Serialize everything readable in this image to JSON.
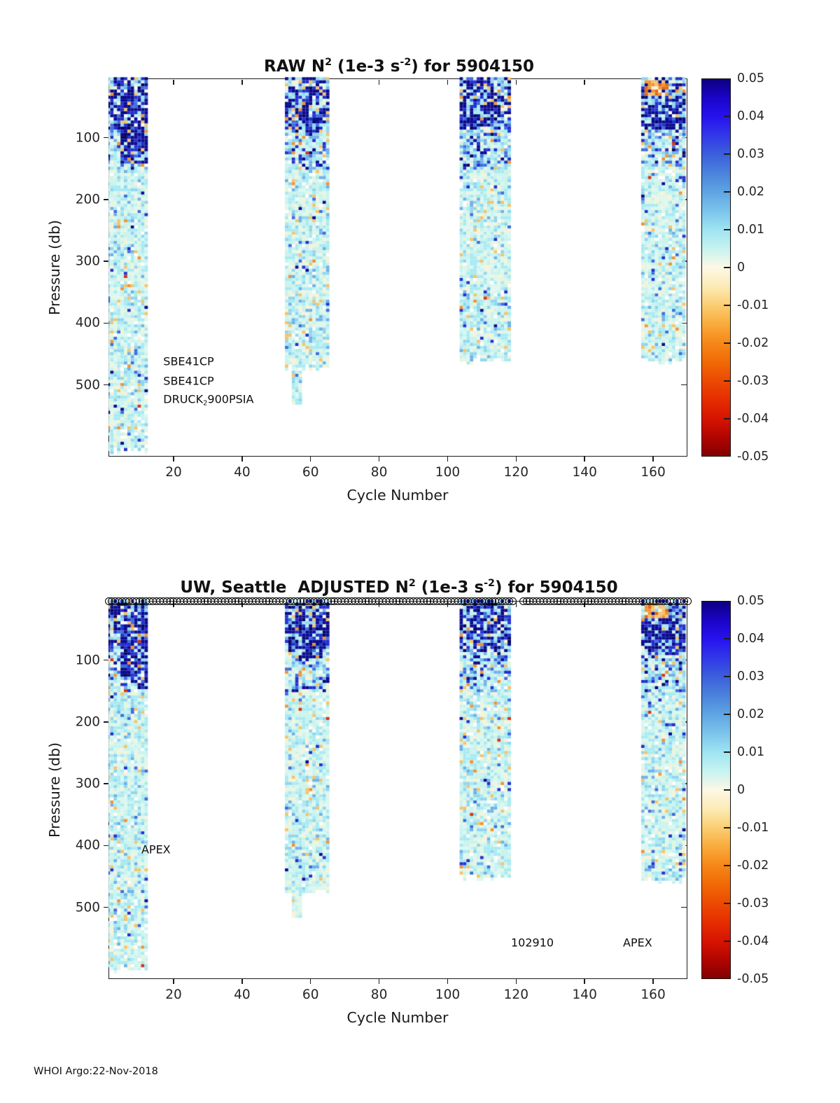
{
  "footer": "WHOI Argo:22-Nov-2018",
  "chart_data": {
    "type": "heatmap",
    "float_id": "5904150",
    "value_label": "N^2 (1e-3 s^-2)",
    "value_range": [
      -0.05,
      0.05
    ],
    "colorbar": {
      "tick_labels": [
        "0.05",
        "0.04",
        "0.03",
        "0.02",
        "0.01",
        "0",
        "-0.01",
        "-0.02",
        "-0.03",
        "-0.04",
        "-0.05"
      ],
      "tick_values": [
        0.05,
        0.04,
        0.03,
        0.02,
        0.01,
        0,
        -0.01,
        -0.02,
        -0.03,
        -0.04,
        -0.05
      ],
      "stops": [
        {
          "v": 0.05,
          "c": "#0d0080"
        },
        {
          "v": 0.045,
          "c": "#1a04c8"
        },
        {
          "v": 0.04,
          "c": "#2712ef"
        },
        {
          "v": 0.035,
          "c": "#3138e8"
        },
        {
          "v": 0.03,
          "c": "#3c5fdc"
        },
        {
          "v": 0.025,
          "c": "#4b83dc"
        },
        {
          "v": 0.02,
          "c": "#5fa5e2"
        },
        {
          "v": 0.015,
          "c": "#7cc4ec"
        },
        {
          "v": 0.01,
          "c": "#9fe4f2"
        },
        {
          "v": 0.005,
          "c": "#c6f3f0"
        },
        {
          "v": 0.0,
          "c": "#fdf8e5"
        },
        {
          "v": -0.005,
          "c": "#fcebb6"
        },
        {
          "v": -0.01,
          "c": "#fbce72"
        },
        {
          "v": -0.015,
          "c": "#f9ab3c"
        },
        {
          "v": -0.02,
          "c": "#f68818"
        },
        {
          "v": -0.025,
          "c": "#f16a06"
        },
        {
          "v": -0.03,
          "c": "#ec4a02"
        },
        {
          "v": -0.035,
          "c": "#e62e00"
        },
        {
          "v": -0.04,
          "c": "#d81400"
        },
        {
          "v": -0.045,
          "c": "#b10500"
        },
        {
          "v": -0.05,
          "c": "#840000"
        }
      ]
    },
    "palette": {
      "navy": "#0b0b8f",
      "dnavy": "#050563",
      "blue": "#2330cf",
      "mblue": "#3f6ede",
      "lblue": "#6fb1e8",
      "sky": "#90d5ee",
      "cyan": "#a8eaf2",
      "pcyan": "#c9f3ee",
      "pale": "#dcf7f0",
      "mint": "#e3f6df",
      "cream": "#f7f2d9",
      "white": "#ffffff",
      "amber": "#f4c36a",
      "orange": "#f09433",
      "dorange": "#e4670d",
      "red": "#d63415",
      "dred": "#8f0a00"
    },
    "depth_tiers": [
      {
        "pmax": 85,
        "w": {
          "navy": 0.27,
          "dnavy": 0.04,
          "blue": 0.15,
          "mblue": 0.07,
          "lblue": 0.07,
          "sky": 0.07,
          "cyan": 0.09,
          "pcyan": 0.06,
          "pale": 0.04,
          "mint": 0.02,
          "cream": 0.04,
          "white": 0.02,
          "amber": 0.04,
          "orange": 0.02,
          "red": 0.008,
          "dred": 0.002
        }
      },
      {
        "pmax": 150,
        "w": {
          "navy": 0.06,
          "dnavy": 0.01,
          "blue": 0.07,
          "mblue": 0.06,
          "lblue": 0.09,
          "sky": 0.11,
          "cyan": 0.18,
          "pcyan": 0.15,
          "pale": 0.09,
          "mint": 0.05,
          "cream": 0.05,
          "white": 0.02,
          "amber": 0.04,
          "orange": 0.015,
          "red": 0.008
        }
      },
      {
        "pmax": 9999,
        "w": {
          "navy": 0.004,
          "blue": 0.01,
          "mblue": 0.016,
          "lblue": 0.035,
          "sky": 0.08,
          "cyan": 0.21,
          "pcyan": 0.26,
          "pale": 0.16,
          "mint": 0.1,
          "cream": 0.06,
          "white": 0.025,
          "amber": 0.03,
          "orange": 0.008,
          "red": 0.004
        }
      }
    ],
    "weight_sets": {
      "blobA": {
        "navy": 0.38,
        "dnavy": 0.06,
        "blue": 0.2,
        "mblue": 0.08,
        "sky": 0.07,
        "cyan": 0.08,
        "pcyan": 0.05,
        "amber": 0.04,
        "white": 0.02,
        "orange": 0.015,
        "red": 0.005
      },
      "blobB": {
        "navy": 0.32,
        "dnavy": 0.04,
        "blue": 0.19,
        "mblue": 0.09,
        "sky": 0.09,
        "cyan": 0.11,
        "pcyan": 0.08,
        "amber": 0.05,
        "orange": 0.02,
        "white": 0.01
      },
      "blobC": {
        "navy": 0.34,
        "dnavy": 0.04,
        "blue": 0.17,
        "mblue": 0.08,
        "sky": 0.1,
        "cyan": 0.12,
        "pcyan": 0.08,
        "amber": 0.05,
        "orange": 0.015,
        "white": 0.005
      },
      "blobD1": {
        "orange": 0.36,
        "amber": 0.3,
        "dorange": 0.14,
        "cream": 0.08,
        "navy": 0.06,
        "sky": 0.04,
        "pcyan": 0.02
      },
      "blobD2": {
        "navy": 0.38,
        "dnavy": 0.04,
        "blue": 0.19,
        "mblue": 0.08,
        "sky": 0.1,
        "cyan": 0.1,
        "pcyan": 0.07,
        "amber": 0.03,
        "white": 0.01
      }
    },
    "panels": [
      {
        "name": "raw",
        "title_segments": [
          {
            "t": "RAW N"
          },
          {
            "t": "2",
            "sup": true
          },
          {
            "t": " (1e-3 s"
          },
          {
            "t": "-2",
            "sup": true
          },
          {
            "t": ") for 5904150"
          }
        ],
        "xlabel": "Cycle Number",
        "ylabel": "Pressure (db)",
        "xlim": [
          1,
          170
        ],
        "ylim": [
          4,
          616
        ],
        "xticks": [
          20,
          40,
          60,
          80,
          100,
          120,
          140,
          160
        ],
        "yticks": [
          100,
          200,
          300,
          400,
          500
        ],
        "annotations": [
          {
            "segments": [
              {
                "t": "SBE41CP"
              }
            ],
            "cycle": 17,
            "pressure": 462
          },
          {
            "segments": [
              {
                "t": "SBE41CP"
              }
            ],
            "cycle": 17,
            "pressure": 494
          },
          {
            "segments": [
              {
                "t": "DRUCK"
              },
              {
                "t": "2",
                "sub": true
              },
              {
                "t": "900PSIA"
              }
            ],
            "cycle": 17,
            "pressure": 523
          }
        ],
        "markers": null,
        "bands": [
          {
            "cycles": [
              1,
              12
            ],
            "p_top": 2,
            "p_bottom": 610,
            "seed": 11,
            "sparse_bottom": 60,
            "features": [
              {
                "c": [
                  5,
                  12
                ],
                "p": [
                  30,
                  140
                ],
                "w": "blobA"
              }
            ]
          },
          {
            "cycles": [
              53,
              65
            ],
            "p_top": 2,
            "p_bottom": 477,
            "seed": 22,
            "tail": {
              "c": [
                55,
                57
              ],
              "p": 528
            },
            "features": [
              {
                "c": [
                  56,
                  63
                ],
                "p": [
                  20,
                  95
                ],
                "w": "blobB"
              }
            ]
          },
          {
            "cycles": [
              104,
              118
            ],
            "p_top": 2,
            "p_bottom": 464,
            "seed": 33,
            "features": [
              {
                "c": [
                  106,
                  113
                ],
                "p": [
                  6,
                  80
                ],
                "w": "blobC"
              }
            ]
          },
          {
            "cycles": [
              157,
              169
            ],
            "p_top": 2,
            "p_bottom": 464,
            "seed": 44,
            "features": [
              {
                "c": [
                  158,
                  164
                ],
                "p": [
                  8,
                  30
                ],
                "w": "blobD1"
              },
              {
                "c": [
                  158,
                  169
                ],
                "p": [
                  28,
                  85
                ],
                "w": "blobD2"
              }
            ]
          }
        ]
      },
      {
        "name": "adjusted",
        "title_segments": [
          {
            "t": "UW, Seattle  ADJUSTED N"
          },
          {
            "t": "2",
            "sup": true
          },
          {
            "t": " (1e-3 s"
          },
          {
            "t": "-2",
            "sup": true
          },
          {
            "t": ") for 5904150"
          }
        ],
        "xlabel": "Cycle Number",
        "ylabel": "Pressure (db)",
        "xlim": [
          1,
          170
        ],
        "ylim": [
          4,
          616
        ],
        "xticks": [
          20,
          40,
          60,
          80,
          100,
          120,
          140,
          160
        ],
        "yticks": [
          100,
          200,
          300,
          400,
          500
        ],
        "annotations": [
          {
            "segments": [
              {
                "t": "APEX"
              }
            ],
            "cycle": 10.6,
            "pressure": 406
          },
          {
            "segments": [
              {
                "t": "102910"
              }
            ],
            "cycle": 118.5,
            "pressure": 557
          },
          {
            "segments": [
              {
                "t": "APEX"
              }
            ],
            "cycle": 151.2,
            "pressure": 557
          }
        ],
        "markers": {
          "shape": "circle",
          "from": 1,
          "to": 170,
          "skip": [
            120,
            121
          ]
        },
        "bands": [
          {
            "cycles": [
              1,
              12
            ],
            "p_top": 2,
            "p_bottom": 608,
            "seed": 55,
            "sparse_bottom": 60,
            "features": [
              {
                "c": [
                  5,
                  12
                ],
                "p": [
                  30,
                  140
                ],
                "w": "blobA"
              }
            ]
          },
          {
            "cycles": [
              53,
              65
            ],
            "p_top": 2,
            "p_bottom": 477,
            "seed": 66,
            "tail": {
              "c": [
                55,
                57
              ],
              "p": 517
            },
            "features": [
              {
                "c": [
                  56,
                  63
                ],
                "p": [
                  20,
                  95
                ],
                "w": "blobB"
              }
            ]
          },
          {
            "cycles": [
              104,
              118
            ],
            "p_top": 2,
            "p_bottom": 455,
            "seed": 77,
            "features": [
              {
                "c": [
                  106,
                  113
                ],
                "p": [
                  6,
                  80
                ],
                "w": "blobC"
              }
            ]
          },
          {
            "cycles": [
              157,
              169
            ],
            "p_top": 2,
            "p_bottom": 460,
            "seed": 88,
            "features": [
              {
                "c": [
                  158,
                  164
                ],
                "p": [
                  8,
                  30
                ],
                "w": "blobD1"
              },
              {
                "c": [
                  158,
                  169
                ],
                "p": [
                  28,
                  85
                ],
                "w": "blobD2"
              }
            ]
          }
        ]
      }
    ]
  }
}
